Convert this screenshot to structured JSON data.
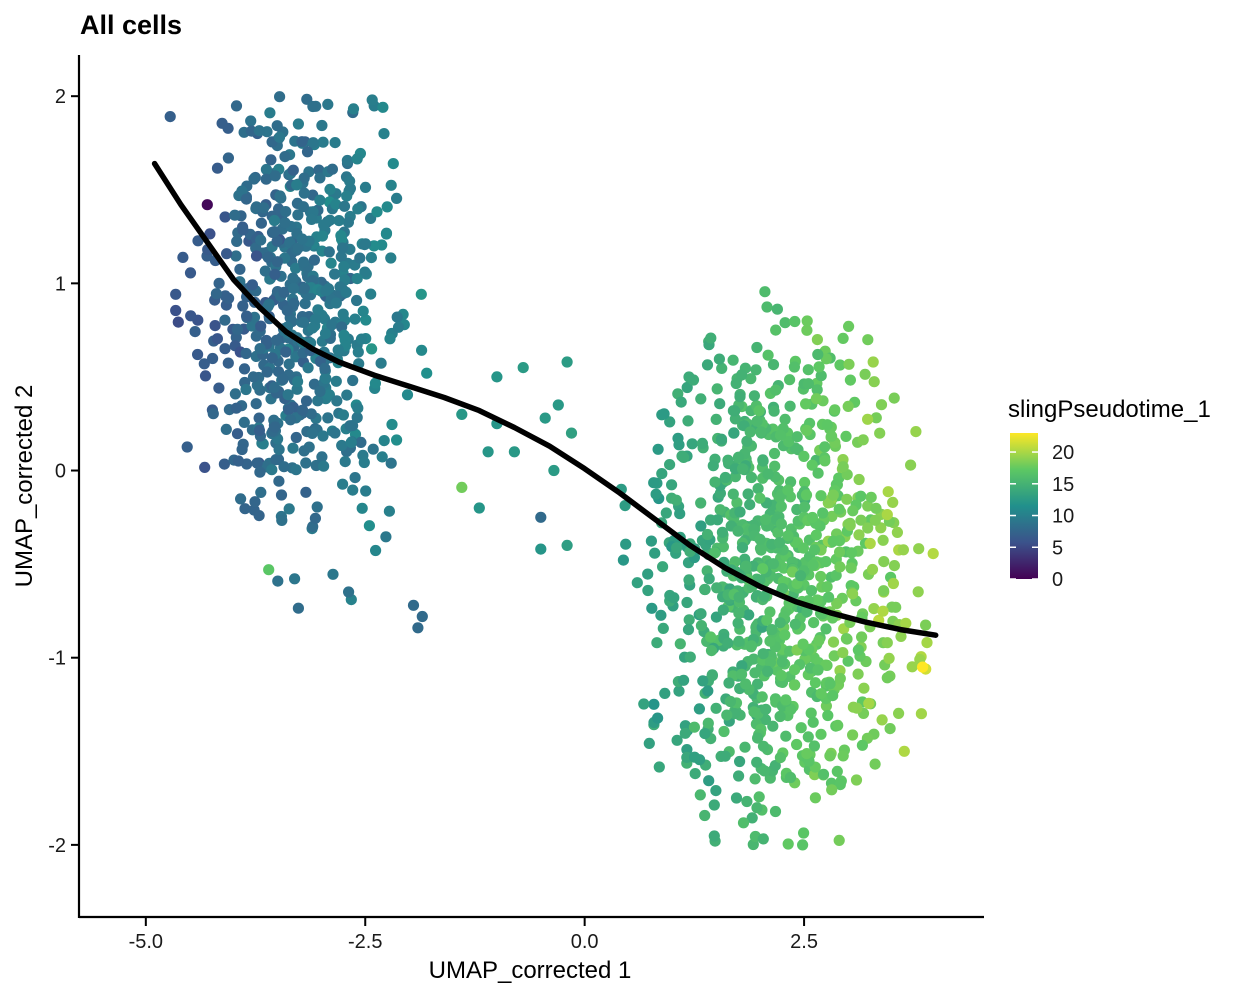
{
  "chart_data": {
    "type": "scatter",
    "title": "All cells",
    "xlabel": "UMAP_corrected 1",
    "ylabel": "UMAP_corrected 2",
    "xlim": [
      -5.75,
      4.55
    ],
    "ylim": [
      -2.38,
      2.22
    ],
    "xticks": [
      -5.0,
      -2.5,
      0.0,
      2.5
    ],
    "xtick_labels": [
      "-5.0",
      "-2.5",
      "0.0",
      "2.5"
    ],
    "yticks": [
      -2,
      -1,
      0,
      1,
      2
    ],
    "ytick_labels": [
      "-2",
      "-1",
      "0",
      "1",
      "2"
    ],
    "color_variable": "slingPseudotime_1",
    "colorbar": {
      "title": "slingPseudotime_1",
      "range": [
        0,
        23
      ],
      "ticks": [
        0,
        5,
        10,
        15,
        20
      ],
      "tick_labels": [
        "0",
        "5",
        "10",
        "15",
        "20"
      ],
      "palette": "viridis",
      "colors": [
        "#440154",
        "#3b528b",
        "#21908c",
        "#5dc863",
        "#fde725"
      ],
      "placement": "right"
    },
    "trajectory_curve": {
      "x": [
        -4.9,
        -4.6,
        -4.3,
        -4.0,
        -3.7,
        -3.4,
        -3.1,
        -2.8,
        -2.4,
        -2.0,
        -1.6,
        -1.2,
        -0.8,
        -0.4,
        0.0,
        0.4,
        0.8,
        1.2,
        1.6,
        2.0,
        2.4,
        2.8,
        3.2,
        3.6,
        4.0
      ],
      "y": [
        1.64,
        1.42,
        1.22,
        1.02,
        0.87,
        0.74,
        0.65,
        0.58,
        0.51,
        0.45,
        0.39,
        0.32,
        0.23,
        0.13,
        0.01,
        -0.12,
        -0.26,
        -0.4,
        -0.52,
        -0.62,
        -0.7,
        -0.76,
        -0.81,
        -0.85,
        -0.88
      ],
      "color": "#000000"
    },
    "clusters": [
      {
        "name": "",
        "center": [
          -3.3,
          0.9
        ],
        "sd": [
          0.55,
          0.62
        ],
        "n": 600,
        "pseudotime_range": [
          6,
          12
        ],
        "sample_points_shown": 600
      },
      {
        "name": "",
        "center": [
          2.2,
          -0.6
        ],
        "sd": [
          0.75,
          0.7
        ],
        "n": 900,
        "pseudotime_range": [
          12,
          20
        ],
        "sample_points_shown": 900
      }
    ],
    "notable_points": [
      {
        "x": -4.3,
        "y": 1.42,
        "pseudotime": 0.5
      },
      {
        "x": 3.85,
        "y": -1.05,
        "pseudotime": 23
      },
      {
        "x": -0.5,
        "y": -0.25,
        "pseudotime": 8
      },
      {
        "x": -3.6,
        "y": -0.53,
        "pseudotime": 17
      },
      {
        "x": -1.4,
        "y": -0.09,
        "pseudotime": 18
      }
    ],
    "grid": false,
    "legend_placement": "right"
  }
}
